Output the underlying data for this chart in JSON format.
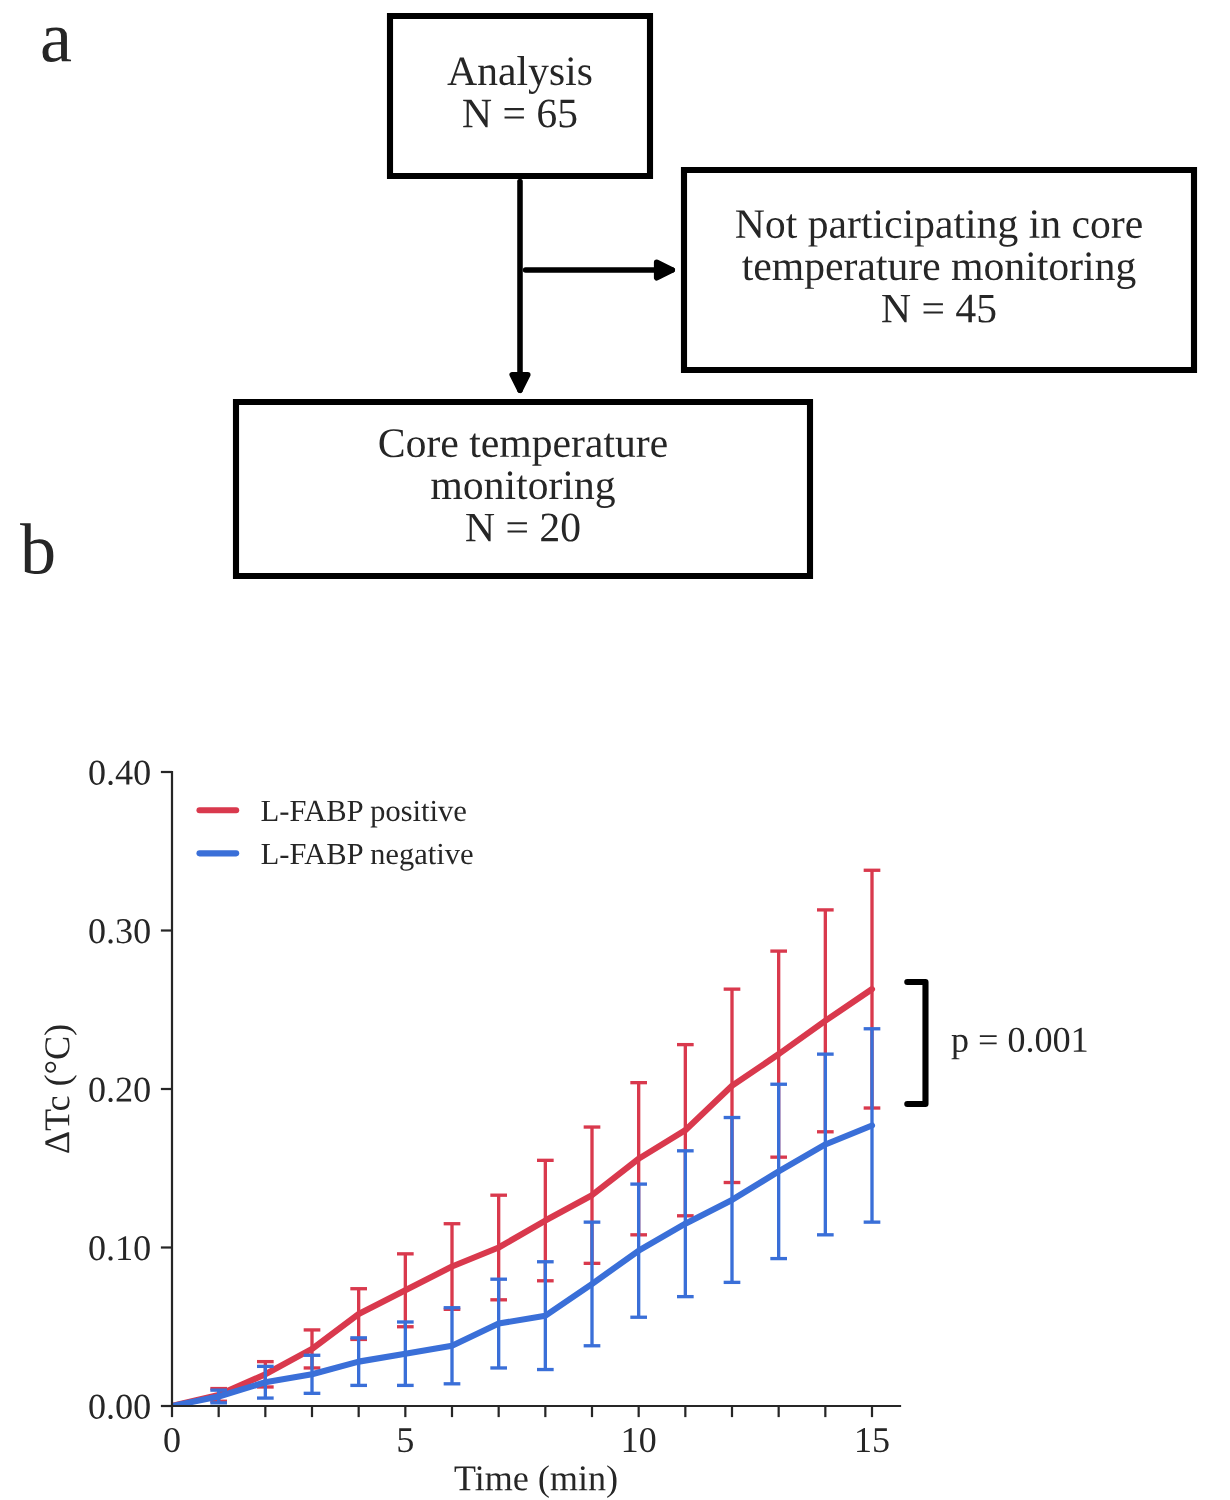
{
  "chart_data": [
    {
      "type": "other",
      "annotations": [
        "a",
        "Analysis\nN = 65",
        "Not participating in core\ntemperature monitoring\nN = 45",
        "Core temperature\nmonitoring\nN = 20"
      ]
    },
    {
      "type": "line",
      "xlabel": "Time (min)",
      "ylabel": "ΔTc (°C)",
      "x": [
        0,
        1,
        2,
        3,
        4,
        5,
        6,
        7,
        8,
        9,
        10,
        11,
        12,
        13,
        14,
        15
      ],
      "series": [
        {
          "name": "L-FABP positive",
          "color": "#d9394d",
          "values": [
            0,
            0.007,
            0.02,
            0.036,
            0.058,
            0.073,
            0.088,
            0.1,
            0.117,
            0.133,
            0.156,
            0.174,
            0.202,
            0.222,
            0.243,
            0.263
          ],
          "errors": [
            null,
            0.004,
            0.008,
            0.012,
            0.016,
            0.023,
            0.027,
            0.033,
            0.038,
            0.043,
            0.048,
            0.054,
            0.061,
            0.065,
            0.07,
            0.075
          ]
        },
        {
          "name": "L-FABP negative",
          "color": "#3a6fd8",
          "values": [
            0,
            0.006,
            0.015,
            0.02,
            0.028,
            0.033,
            0.038,
            0.052,
            0.057,
            0.077,
            0.098,
            0.115,
            0.13,
            0.148,
            0.165,
            0.177
          ],
          "errors": [
            null,
            0.004,
            0.01,
            0.012,
            0.015,
            0.02,
            0.024,
            0.028,
            0.034,
            0.039,
            0.042,
            0.046,
            0.052,
            0.055,
            0.057,
            0.061
          ]
        }
      ],
      "xlim": [
        0,
        15.6
      ],
      "ylim": [
        0,
        0.4
      ],
      "xticks": [
        0,
        {
          "value": 1,
          "label": null
        },
        {
          "value": 2,
          "label": null
        },
        {
          "value": 3,
          "label": null
        },
        {
          "value": 4,
          "label": null
        },
        5,
        {
          "value": 6,
          "label": null
        },
        {
          "value": 7,
          "label": null
        },
        {
          "value": 8,
          "label": null
        },
        {
          "value": 9,
          "label": null
        },
        10,
        {
          "value": 11,
          "label": null
        },
        {
          "value": 12,
          "label": null
        },
        {
          "value": 13,
          "label": null
        },
        {
          "value": 14,
          "label": null
        },
        15
      ],
      "yticks": [
        {
          "value": 0,
          "label": "0.00"
        },
        {
          "value": 0.1,
          "label": "0.10"
        },
        {
          "value": 0.2,
          "label": "0.20"
        },
        {
          "value": 0.3,
          "label": "0.30"
        },
        {
          "value": 0.4,
          "label": "0.40"
        }
      ],
      "annotations": [
        "b",
        "p = 0.001"
      ],
      "legend": "top left",
      "grid": false,
      "marker": "none",
      "line_style": "solid"
    }
  ]
}
